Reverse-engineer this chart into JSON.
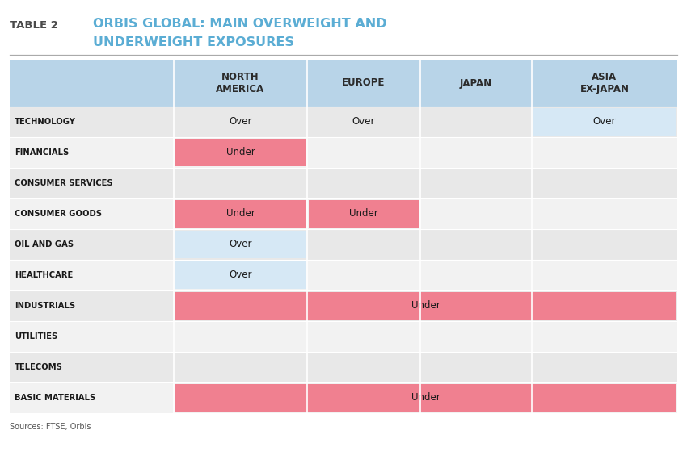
{
  "table_label": "TABLE 2",
  "title_line1": "ORBIS GLOBAL: MAIN OVERWEIGHT AND",
  "title_line2": "UNDERWEIGHT EXPOSURES",
  "source_text": "Sources: FTSE, Orbis",
  "col_headers": [
    "NORTH\nAMERICA",
    "EUROPE",
    "JAPAN",
    "ASIA\nEX-JAPAN"
  ],
  "rows": [
    "TECHNOLOGY",
    "FINANCIALS",
    "CONSUMER SERVICES",
    "CONSUMER GOODS",
    "OIL AND GAS",
    "HEALTHCARE",
    "INDUSTRIALS",
    "UTILITIES",
    "TELECOMS",
    "BASIC MATERIALS"
  ],
  "cells": {
    "TECHNOLOGY": [
      {
        "text": "Over",
        "bg": "none"
      },
      {
        "text": "Over",
        "bg": "none"
      },
      {
        "text": "",
        "bg": "none"
      },
      {
        "text": "Over",
        "bg": "light_blue"
      }
    ],
    "FINANCIALS": [
      {
        "text": "Under",
        "bg": "pink"
      },
      {
        "text": "",
        "bg": "none"
      },
      {
        "text": "",
        "bg": "none"
      },
      {
        "text": "",
        "bg": "none"
      }
    ],
    "CONSUMER SERVICES": [
      {
        "text": "",
        "bg": "none"
      },
      {
        "text": "",
        "bg": "none"
      },
      {
        "text": "",
        "bg": "none"
      },
      {
        "text": "",
        "bg": "none"
      }
    ],
    "CONSUMER GOODS": [
      {
        "text": "Under",
        "bg": "pink"
      },
      {
        "text": "Under",
        "bg": "pink"
      },
      {
        "text": "",
        "bg": "none"
      },
      {
        "text": "",
        "bg": "none"
      }
    ],
    "OIL AND GAS": [
      {
        "text": "Over",
        "bg": "light_blue"
      },
      {
        "text": "",
        "bg": "none"
      },
      {
        "text": "",
        "bg": "none"
      },
      {
        "text": "",
        "bg": "none"
      }
    ],
    "HEALTHCARE": [
      {
        "text": "Over",
        "bg": "light_blue"
      },
      {
        "text": "",
        "bg": "none"
      },
      {
        "text": "",
        "bg": "none"
      },
      {
        "text": "",
        "bg": "none"
      }
    ],
    "INDUSTRIALS": "wide_pink",
    "UTILITIES": [
      {
        "text": "",
        "bg": "none"
      },
      {
        "text": "",
        "bg": "none"
      },
      {
        "text": "",
        "bg": "none"
      },
      {
        "text": "",
        "bg": "none"
      }
    ],
    "TELECOMS": [
      {
        "text": "",
        "bg": "none"
      },
      {
        "text": "",
        "bg": "none"
      },
      {
        "text": "",
        "bg": "none"
      },
      {
        "text": "",
        "bg": "none"
      }
    ],
    "BASIC MATERIALS": "wide_pink"
  },
  "colors": {
    "header_bg": "#B8D4E8",
    "header_text": "#2B2B2B",
    "row_label_text": "#1A1A1A",
    "row_bg_odd": "#E8E8E8",
    "row_bg_even": "#F2F2F2",
    "pink_bg": "#F08090",
    "light_blue_cell_bg": "#D6E8F5",
    "title_color": "#5BADD4",
    "label_color": "#4A4A4A",
    "divider_color": "#AAAAAA",
    "white_line": "#FFFFFF"
  }
}
